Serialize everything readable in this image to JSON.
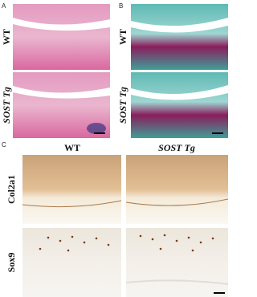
{
  "panels": [
    {
      "label": "A",
      "rows": [
        "WT",
        "SOST Tg"
      ]
    },
    {
      "label": "B",
      "rows": [
        "WT",
        "SOST Tg"
      ]
    },
    {
      "label": "C",
      "columns": [
        "WT",
        "SOST Tg"
      ],
      "rows": [
        "Col2a1",
        "Sox9"
      ]
    }
  ]
}
